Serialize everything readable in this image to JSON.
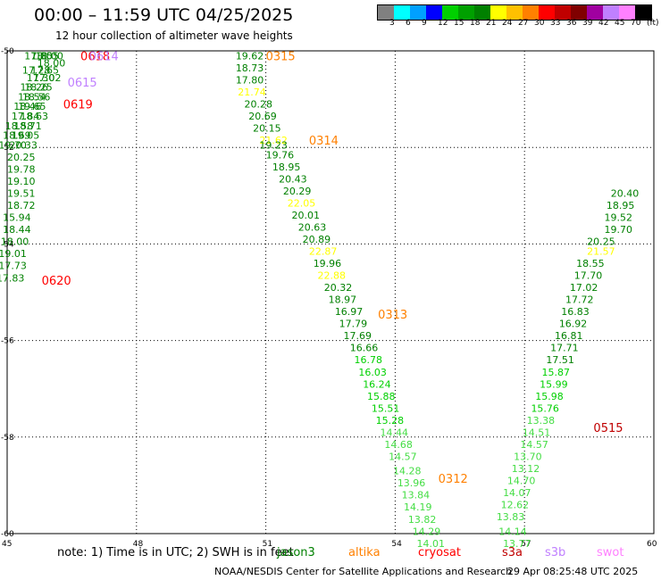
{
  "header": {
    "title": "00:00 – 11:59 UTC 04/25/2025",
    "subtitle": "12 hour collection of altimeter wave heights"
  },
  "colorbar": {
    "colors": [
      "#808080",
      "#00ffff",
      "#00a0ff",
      "#0000ff",
      "#00d000",
      "#00a000",
      "#008000",
      "#ffff00",
      "#ffc000",
      "#ff8000",
      "#ff0000",
      "#c00000",
      "#800000",
      "#a000a0",
      "#c080ff",
      "#ff80ff",
      "#000000"
    ],
    "labels": [
      "3",
      "6",
      "9",
      "12",
      "15",
      "18",
      "21",
      "24",
      "27",
      "30",
      "33",
      "36",
      "39",
      "42",
      "45",
      "70",
      "(ft)"
    ]
  },
  "axes": {
    "y_labels": [
      "-50",
      "-52",
      "-54",
      "-56",
      "-58",
      "-60"
    ],
    "x_labels": [
      "45",
      "48",
      "51",
      "54",
      "57",
      "60"
    ],
    "xlim": [
      45,
      60
    ],
    "ylim": [
      -60,
      -50
    ]
  },
  "note": "note: 1) Time is in UTC; 2) SWH is in feet",
  "legend": [
    {
      "name": "jason3",
      "color": "#008000"
    },
    {
      "name": "altika",
      "color": "#ff8000"
    },
    {
      "name": "cryosat",
      "color": "#ff0000"
    },
    {
      "name": "s3a",
      "color": "#c00000"
    },
    {
      "name": "s3b",
      "color": "#c080ff"
    },
    {
      "name": "swot",
      "color": "#ff80ff"
    }
  ],
  "footer": {
    "credit": "NOAA/NESDIS Center for Satellite Applications and Research",
    "generated": "29 Apr 08:25:48 UTC 2025"
  },
  "chart_data": {
    "type": "scatter",
    "points": [
      {
        "lon": 45.4,
        "lat": -50.1,
        "v": "17.80",
        "c": "#008000"
      },
      {
        "lon": 45.55,
        "lat": -50.1,
        "v": "18.55",
        "c": "#008000"
      },
      {
        "lon": 45.65,
        "lat": -50.1,
        "v": "18.00",
        "c": "#008000"
      },
      {
        "lon": 45.7,
        "lat": -50.25,
        "v": "18.00",
        "c": "#008000"
      },
      {
        "lon": 45.35,
        "lat": -50.4,
        "v": "17.28",
        "c": "#008000"
      },
      {
        "lon": 45.55,
        "lat": -50.4,
        "v": "17.65",
        "c": "#008000"
      },
      {
        "lon": 45.45,
        "lat": -50.55,
        "v": "17.30",
        "c": "#008000"
      },
      {
        "lon": 45.6,
        "lat": -50.55,
        "v": "17.02",
        "c": "#008000"
      },
      {
        "lon": 45.3,
        "lat": -50.75,
        "v": "18.26",
        "c": "#008000"
      },
      {
        "lon": 45.4,
        "lat": -50.75,
        "v": "18.25",
        "c": "#008000"
      },
      {
        "lon": 45.25,
        "lat": -50.95,
        "v": "18.54",
        "c": "#008000"
      },
      {
        "lon": 45.35,
        "lat": -50.95,
        "v": "18.56",
        "c": "#008000"
      },
      {
        "lon": 45.15,
        "lat": -51.15,
        "v": "18.46",
        "c": "#008000"
      },
      {
        "lon": 45.25,
        "lat": -51.15,
        "v": "19.65",
        "c": "#008000"
      },
      {
        "lon": 45.1,
        "lat": -51.35,
        "v": "17.84",
        "c": "#008000"
      },
      {
        "lon": 45.3,
        "lat": -51.35,
        "v": "18.63",
        "c": "#008000"
      },
      {
        "lon": 44.95,
        "lat": -51.55,
        "v": "18.58",
        "c": "#008000"
      },
      {
        "lon": 45.15,
        "lat": -51.55,
        "v": "18.71",
        "c": "#008000"
      },
      {
        "lon": 44.9,
        "lat": -51.75,
        "v": "18.69",
        "c": "#008000"
      },
      {
        "lon": 45.1,
        "lat": -51.75,
        "v": "19.05",
        "c": "#008000"
      },
      {
        "lon": 44.8,
        "lat": -51.95,
        "v": "19.70",
        "c": "#008000"
      },
      {
        "lon": 45.05,
        "lat": -51.95,
        "v": "20.33",
        "c": "#008000"
      },
      {
        "lon": 45.0,
        "lat": -52.2,
        "v": "20.25",
        "c": "#008000"
      },
      {
        "lon": 45.0,
        "lat": -52.45,
        "v": "19.78",
        "c": "#008000"
      },
      {
        "lon": 45.0,
        "lat": -52.7,
        "v": "19.10",
        "c": "#008000"
      },
      {
        "lon": 45.0,
        "lat": -52.95,
        "v": "19.51",
        "c": "#008000"
      },
      {
        "lon": 45.0,
        "lat": -53.2,
        "v": "18.72",
        "c": "#008000"
      },
      {
        "lon": 44.9,
        "lat": -53.45,
        "v": "15.94",
        "c": "#008000"
      },
      {
        "lon": 44.9,
        "lat": -53.7,
        "v": "18.44",
        "c": "#008000"
      },
      {
        "lon": 44.85,
        "lat": -53.95,
        "v": "18.00",
        "c": "#008000"
      },
      {
        "lon": 44.8,
        "lat": -54.2,
        "v": "19.01",
        "c": "#008000"
      },
      {
        "lon": 44.8,
        "lat": -54.45,
        "v": "17.73",
        "c": "#008000"
      },
      {
        "lon": 44.75,
        "lat": -54.7,
        "v": "17.83",
        "c": "#008000"
      },
      {
        "lon": 50.3,
        "lat": -50.1,
        "v": "19.62",
        "c": "#008000"
      },
      {
        "lon": 50.3,
        "lat": -50.35,
        "v": "18.73",
        "c": "#008000"
      },
      {
        "lon": 50.3,
        "lat": -50.6,
        "v": "17.80",
        "c": "#008000"
      },
      {
        "lon": 50.35,
        "lat": -50.85,
        "v": "21.74",
        "c": "#ffff00"
      },
      {
        "lon": 50.5,
        "lat": -51.1,
        "v": "20.28",
        "c": "#008000"
      },
      {
        "lon": 50.6,
        "lat": -51.35,
        "v": "20.69",
        "c": "#008000"
      },
      {
        "lon": 50.7,
        "lat": -51.6,
        "v": "20.15",
        "c": "#008000"
      },
      {
        "lon": 50.85,
        "lat": -51.85,
        "v": "21.62",
        "c": "#ffff00"
      },
      {
        "lon": 50.85,
        "lat": -51.95,
        "v": "19.23",
        "c": "#008000"
      },
      {
        "lon": 51.0,
        "lat": -52.15,
        "v": "19.76",
        "c": "#008000"
      },
      {
        "lon": 51.15,
        "lat": -52.4,
        "v": "18.95",
        "c": "#008000"
      },
      {
        "lon": 51.3,
        "lat": -52.65,
        "v": "20.43",
        "c": "#008000"
      },
      {
        "lon": 51.4,
        "lat": -52.9,
        "v": "20.29",
        "c": "#008000"
      },
      {
        "lon": 51.5,
        "lat": -53.15,
        "v": "22.05",
        "c": "#ffff00"
      },
      {
        "lon": 51.6,
        "lat": -53.4,
        "v": "20.01",
        "c": "#008000"
      },
      {
        "lon": 51.75,
        "lat": -53.65,
        "v": "20.63",
        "c": "#008000"
      },
      {
        "lon": 51.85,
        "lat": -53.9,
        "v": "20.89",
        "c": "#008000"
      },
      {
        "lon": 52.0,
        "lat": -54.15,
        "v": "22.87",
        "c": "#ffff00"
      },
      {
        "lon": 52.1,
        "lat": -54.4,
        "v": "19.96",
        "c": "#008000"
      },
      {
        "lon": 52.2,
        "lat": -54.65,
        "v": "22.88",
        "c": "#ffff00"
      },
      {
        "lon": 52.35,
        "lat": -54.9,
        "v": "20.32",
        "c": "#008000"
      },
      {
        "lon": 52.45,
        "lat": -55.15,
        "v": "18.97",
        "c": "#008000"
      },
      {
        "lon": 52.6,
        "lat": -55.4,
        "v": "16.97",
        "c": "#008000"
      },
      {
        "lon": 52.7,
        "lat": -55.65,
        "v": "17.79",
        "c": "#008000"
      },
      {
        "lon": 52.8,
        "lat": -55.9,
        "v": "17.69",
        "c": "#008000"
      },
      {
        "lon": 52.95,
        "lat": -56.15,
        "v": "16.66",
        "c": "#008000"
      },
      {
        "lon": 53.05,
        "lat": -56.4,
        "v": "16.78",
        "c": "#00d000"
      },
      {
        "lon": 53.15,
        "lat": -56.65,
        "v": "16.03",
        "c": "#00d000"
      },
      {
        "lon": 53.25,
        "lat": -56.9,
        "v": "16.24",
        "c": "#00d000"
      },
      {
        "lon": 53.35,
        "lat": -57.15,
        "v": "15.88",
        "c": "#00d000"
      },
      {
        "lon": 53.45,
        "lat": -57.4,
        "v": "15.51",
        "c": "#00d000"
      },
      {
        "lon": 53.55,
        "lat": -57.65,
        "v": "15.28",
        "c": "#00d000"
      },
      {
        "lon": 53.65,
        "lat": -57.9,
        "v": "14.44",
        "c": "#44dd44"
      },
      {
        "lon": 53.75,
        "lat": -58.15,
        "v": "14.68",
        "c": "#44dd44"
      },
      {
        "lon": 53.85,
        "lat": -58.4,
        "v": "14.57",
        "c": "#44dd44"
      },
      {
        "lon": 53.95,
        "lat": -58.7,
        "v": "14.28",
        "c": "#44dd44"
      },
      {
        "lon": 54.05,
        "lat": -58.95,
        "v": "13.96",
        "c": "#44dd44"
      },
      {
        "lon": 54.15,
        "lat": -59.2,
        "v": "13.84",
        "c": "#44dd44"
      },
      {
        "lon": 54.2,
        "lat": -59.45,
        "v": "14.19",
        "c": "#44dd44"
      },
      {
        "lon": 54.3,
        "lat": -59.7,
        "v": "13.82",
        "c": "#44dd44"
      },
      {
        "lon": 54.4,
        "lat": -59.95,
        "v": "14.29",
        "c": "#44dd44"
      },
      {
        "lon": 54.5,
        "lat": -60.2,
        "v": "14.01",
        "c": "#44dd44"
      },
      {
        "lon": 56.5,
        "lat": -60.2,
        "v": "13.77",
        "c": "#44dd44"
      },
      {
        "lon": 56.4,
        "lat": -59.95,
        "v": "14.14",
        "c": "#44dd44"
      },
      {
        "lon": 56.35,
        "lat": -59.65,
        "v": "13.83",
        "c": "#44dd44"
      },
      {
        "lon": 56.45,
        "lat": -59.4,
        "v": "12.62",
        "c": "#44dd44"
      },
      {
        "lon": 56.5,
        "lat": -59.15,
        "v": "14.07",
        "c": "#44dd44"
      },
      {
        "lon": 56.6,
        "lat": -58.9,
        "v": "14.70",
        "c": "#44dd44"
      },
      {
        "lon": 56.7,
        "lat": -58.65,
        "v": "13.12",
        "c": "#44dd44"
      },
      {
        "lon": 56.75,
        "lat": -58.4,
        "v": "13.70",
        "c": "#44dd44"
      },
      {
        "lon": 56.9,
        "lat": -58.15,
        "v": "14.57",
        "c": "#44dd44"
      },
      {
        "lon": 56.95,
        "lat": -57.9,
        "v": "14.51",
        "c": "#44dd44"
      },
      {
        "lon": 57.05,
        "lat": -57.65,
        "v": "13.38",
        "c": "#44dd44"
      },
      {
        "lon": 57.15,
        "lat": -57.4,
        "v": "15.76",
        "c": "#00d000"
      },
      {
        "lon": 57.25,
        "lat": -57.15,
        "v": "15.98",
        "c": "#00d000"
      },
      {
        "lon": 57.35,
        "lat": -56.9,
        "v": "15.99",
        "c": "#00d000"
      },
      {
        "lon": 57.4,
        "lat": -56.65,
        "v": "15.87",
        "c": "#00d000"
      },
      {
        "lon": 57.5,
        "lat": -56.4,
        "v": "17.51",
        "c": "#008000"
      },
      {
        "lon": 57.6,
        "lat": -56.15,
        "v": "17.71",
        "c": "#008000"
      },
      {
        "lon": 57.7,
        "lat": -55.9,
        "v": "16.81",
        "c": "#008000"
      },
      {
        "lon": 57.8,
        "lat": -55.65,
        "v": "16.92",
        "c": "#008000"
      },
      {
        "lon": 57.85,
        "lat": -55.4,
        "v": "16.83",
        "c": "#008000"
      },
      {
        "lon": 57.95,
        "lat": -55.15,
        "v": "17.72",
        "c": "#008000"
      },
      {
        "lon": 58.05,
        "lat": -54.9,
        "v": "17.02",
        "c": "#008000"
      },
      {
        "lon": 58.15,
        "lat": -54.65,
        "v": "17.70",
        "c": "#008000"
      },
      {
        "lon": 58.2,
        "lat": -54.4,
        "v": "18.55",
        "c": "#008000"
      },
      {
        "lon": 58.45,
        "lat": -54.15,
        "v": "21.57",
        "c": "#ffff00"
      },
      {
        "lon": 58.45,
        "lat": -53.95,
        "v": "20.25",
        "c": "#008000"
      },
      {
        "lon": 58.85,
        "lat": -53.7,
        "v": "19.70",
        "c": "#008000"
      },
      {
        "lon": 58.85,
        "lat": -53.45,
        "v": "19.52",
        "c": "#008000"
      },
      {
        "lon": 58.9,
        "lat": -53.2,
        "v": "18.95",
        "c": "#008000"
      },
      {
        "lon": 59.0,
        "lat": -52.95,
        "v": "20.40",
        "c": "#008000"
      }
    ],
    "track_labels": [
      {
        "lon": 46.7,
        "lat": -50.1,
        "text": "0618",
        "c": "#ff0000"
      },
      {
        "lon": 46.9,
        "lat": -50.1,
        "text": "0614",
        "c": "#c080ff"
      },
      {
        "lon": 46.4,
        "lat": -50.65,
        "text": "0615",
        "c": "#c080ff"
      },
      {
        "lon": 46.3,
        "lat": -51.1,
        "text": "0619",
        "c": "#ff0000"
      },
      {
        "lon": 45.8,
        "lat": -54.75,
        "text": "0620",
        "c": "#ff0000"
      },
      {
        "lon": 51.0,
        "lat": -50.1,
        "text": "0315",
        "c": "#ff8000"
      },
      {
        "lon": 52.0,
        "lat": -51.85,
        "text": "0314",
        "c": "#ff8000"
      },
      {
        "lon": 53.6,
        "lat": -55.45,
        "text": "0313",
        "c": "#ff8000"
      },
      {
        "lon": 55.0,
        "lat": -58.85,
        "text": "0312",
        "c": "#ff8000"
      },
      {
        "lon": 58.6,
        "lat": -57.8,
        "text": "0515",
        "c": "#c00000"
      }
    ]
  }
}
